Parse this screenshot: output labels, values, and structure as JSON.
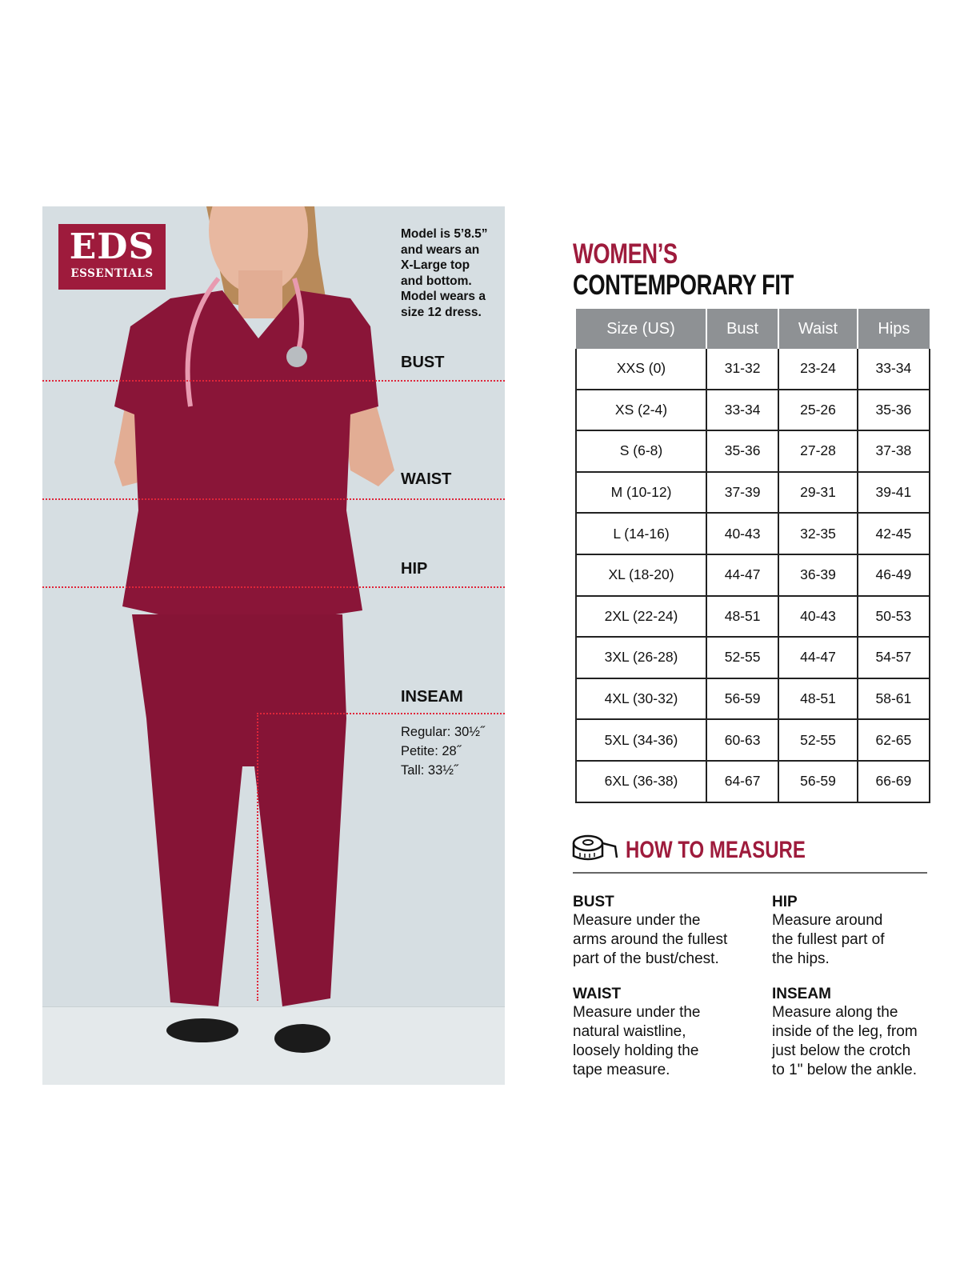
{
  "brand": {
    "logo_line1": "EDS",
    "logo_line2": "ESSENTIALS",
    "color": "#9e1b3c"
  },
  "model_note": [
    "Model is 5’8.5”",
    "and wears an",
    "X-Large top",
    "and bottom.",
    "Model wears a",
    "size 12 dress."
  ],
  "photo_labels": {
    "bust": "BUST",
    "waist": "WAIST",
    "hip": "HIP",
    "inseam": "INSEAM"
  },
  "inseam": [
    "Regular: 30½˝",
    "Petite: 28˝",
    "Tall: 33½˝"
  ],
  "title": {
    "line1": "WOMEN’S",
    "line2": "CONTEMPORARY FIT"
  },
  "size_table": {
    "headers": [
      "Size (US)",
      "Bust",
      "Waist",
      "Hips"
    ],
    "rows": [
      [
        "XXS (0)",
        "31-32",
        "23-24",
        "33-34"
      ],
      [
        "XS (2-4)",
        "33-34",
        "25-26",
        "35-36"
      ],
      [
        "S (6-8)",
        "35-36",
        "27-28",
        "37-38"
      ],
      [
        "M (10-12)",
        "37-39",
        "29-31",
        "39-41"
      ],
      [
        "L (14-16)",
        "40-43",
        "32-35",
        "42-45"
      ],
      [
        "XL (18-20)",
        "44-47",
        "36-39",
        "46-49"
      ],
      [
        "2XL (22-24)",
        "48-51",
        "40-43",
        "50-53"
      ],
      [
        "3XL (26-28)",
        "52-55",
        "44-47",
        "54-57"
      ],
      [
        "4XL (30-32)",
        "56-59",
        "48-51",
        "58-61"
      ],
      [
        "5XL (34-36)",
        "60-63",
        "52-55",
        "62-65"
      ],
      [
        "6XL (36-38)",
        "64-67",
        "56-59",
        "66-69"
      ]
    ]
  },
  "how_to_measure": {
    "title": "HOW TO MEASURE",
    "icon": "tape-measure-icon",
    "items": [
      {
        "heading": "BUST",
        "text": [
          "Measure under the",
          "arms around the fullest",
          "part of the bust/chest."
        ]
      },
      {
        "heading": "HIP",
        "text": [
          "Measure around",
          "the fullest part of",
          "the hips."
        ]
      },
      {
        "heading": "WAIST",
        "text": [
          "Measure under the",
          "natural waistline,",
          "loosely holding the",
          "tape measure."
        ]
      },
      {
        "heading": "INSEAM",
        "text": [
          "Measure along the",
          "inside of the leg, from",
          "just below the crotch",
          "to 1\" below the ankle."
        ]
      }
    ]
  }
}
